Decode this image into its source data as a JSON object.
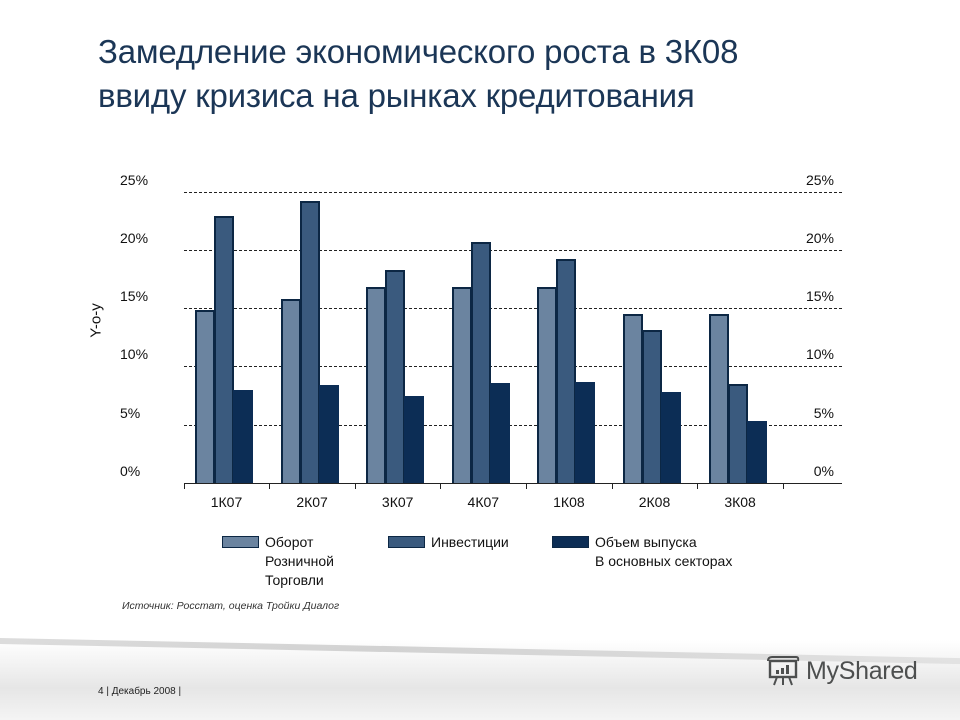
{
  "title": {
    "line1": "Замедление экономического роста в 3К08",
    "line2": "ввиду кризиса на рынках кредитования"
  },
  "chart_data": {
    "type": "bar",
    "title": "Замедление экономического роста в 3К08 ввиду кризиса на рынках кредитования",
    "xlabel": "",
    "ylabel": "Y-o-y",
    "ylim": [
      0,
      25
    ],
    "yticks": [
      "0%",
      "5%",
      "10%",
      "15%",
      "20%",
      "25%"
    ],
    "grid": true,
    "legend_position": "bottom",
    "categories": [
      "1К07",
      "2К07",
      "3К07",
      "4К07",
      "1К08",
      "2К08",
      "3К08"
    ],
    "series": [
      {
        "name": "Оборот Розничной Торговли",
        "color": "#6b84a0",
        "values": [
          14.8,
          15.8,
          16.8,
          16.8,
          16.8,
          14.5,
          14.5
        ]
      },
      {
        "name": "Инвестиции",
        "color": "#3a5a7e",
        "values": [
          22.9,
          24.2,
          18.3,
          20.7,
          19.2,
          13.1,
          8.5
        ]
      },
      {
        "name": "Объем выпуска В основных секторах",
        "color": "#0c2d55",
        "values": [
          8.0,
          8.4,
          7.5,
          8.6,
          8.7,
          7.8,
          5.3
        ]
      }
    ]
  },
  "axis": {
    "y_title": "Y-o-y",
    "y_labels": [
      "25%",
      "20%",
      "15%",
      "10%",
      "5%",
      "0%"
    ]
  },
  "legend": [
    {
      "lines": [
        "Оборот",
        "Розничной",
        "Торговли"
      ]
    },
    {
      "lines": [
        "Инвестиции"
      ]
    },
    {
      "lines": [
        "Объем выпуска",
        "В основных секторах"
      ]
    }
  ],
  "source": "Источник: Росстат, оценка Тройки Диалог",
  "footer": {
    "text": "4  |  Декабрь 2008 |",
    "logo_text": "MyShared"
  }
}
